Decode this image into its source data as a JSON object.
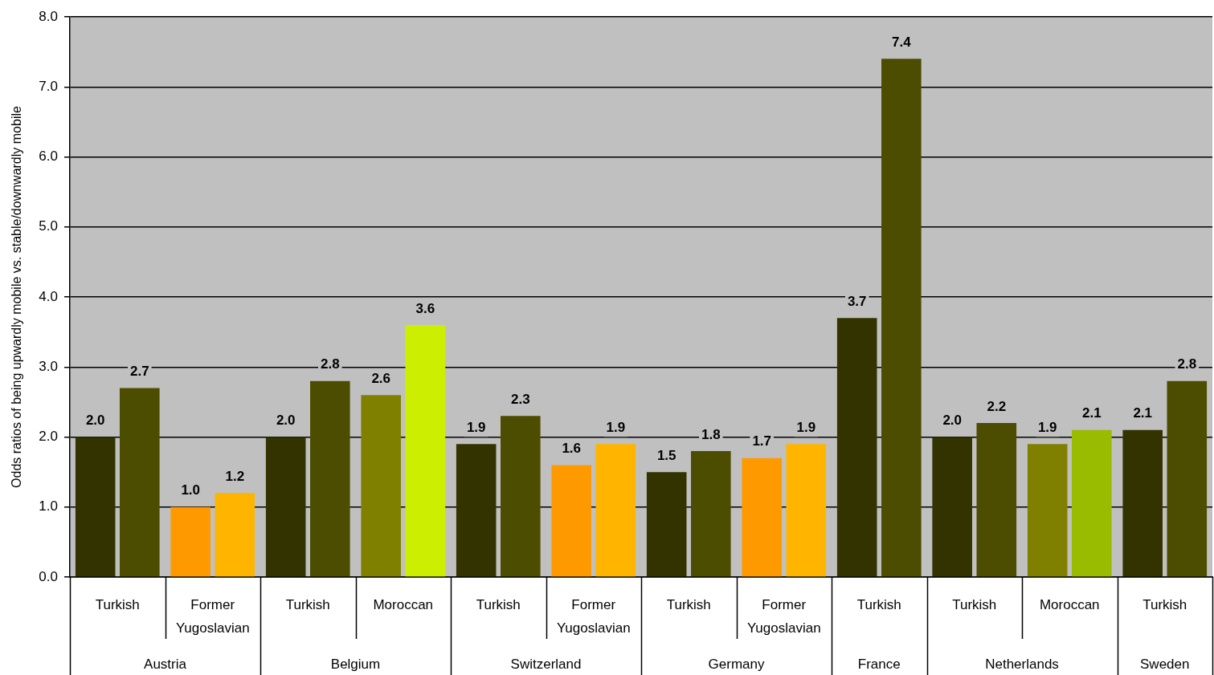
{
  "chart_data": {
    "type": "bar",
    "ylabel": "Odds ratios of being upwardly mobile vs. stable/downwardly mobile",
    "categories": [
      "Turkish",
      "Former Yugoslavian",
      "Turkish",
      "Moroccan",
      "Turkish",
      "Former Yugoslavian",
      "Turkish",
      "Former Yugoslavian",
      "Turkish",
      "Turkish",
      "Moroccan",
      "Turkish"
    ],
    "series": [
      {
        "colors": [
          "#333300",
          "#ff9900",
          "#333300",
          "#808000",
          "#333300",
          "#ff9900",
          "#333300",
          "#ff9900",
          "#333300",
          "#333300",
          "#808000",
          "#333300"
        ],
        "values": [
          2.0,
          1.0,
          2.0,
          2.6,
          1.9,
          1.6,
          1.5,
          1.7,
          3.7,
          2.0,
          1.9,
          2.1
        ],
        "value_labels": [
          "2.0",
          "1.0",
          "2.0",
          "2.6",
          "1.9",
          "1.6",
          "1.5",
          "1.7",
          "3.7",
          "2.0",
          "1.9",
          "2.1"
        ]
      },
      {
        "colors": [
          "#4d4d00",
          "#ffb400",
          "#4d4d00",
          "#ccee00",
          "#4d4d00",
          "#ffb400",
          "#4d4d00",
          "#ffb400",
          "#4d4d00",
          "#4d4d00",
          "#99bb00",
          "#4d4d00"
        ],
        "values": [
          2.7,
          1.2,
          2.8,
          3.6,
          2.3,
          1.9,
          1.8,
          1.9,
          7.4,
          2.2,
          2.1,
          2.8
        ],
        "value_labels": [
          "2.7",
          "1.2",
          "2.8",
          "3.6",
          "2.3",
          "1.9",
          "1.8",
          "1.9",
          "7.4",
          "2.2",
          "2.1",
          "2.8"
        ]
      }
    ],
    "ylim": [
      0,
      8
    ],
    "yticks": [
      {
        "value": 0,
        "label": "0.0"
      },
      {
        "value": 1,
        "label": "1.0"
      },
      {
        "value": 2,
        "label": "2.0"
      },
      {
        "value": 3,
        "label": "3.0"
      },
      {
        "value": 4,
        "label": "4.0"
      },
      {
        "value": 5,
        "label": "5.0"
      },
      {
        "value": 6,
        "label": "6.0"
      },
      {
        "value": 7,
        "label": "7.0"
      },
      {
        "value": 8,
        "label": "8.0"
      }
    ],
    "grid": "y",
    "annotations": [
      "Austria",
      "Belgium",
      "Switzerland",
      "Germany",
      "France",
      "Netherlands",
      "Sweden"
    ]
  }
}
